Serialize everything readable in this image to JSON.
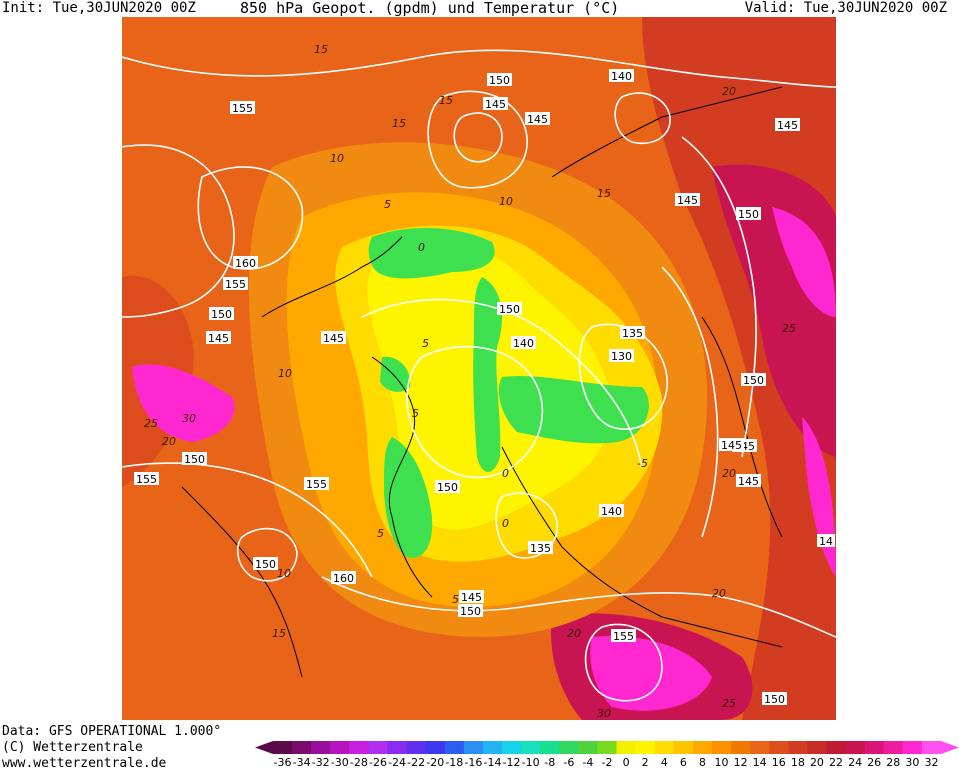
{
  "header": {
    "init": "Init: Tue,30JUN2020 00Z",
    "title": "850 hPa Geopot. (gpdm) und Temperatur (°C)",
    "valid": "Valid: Tue,30JUN2020 00Z"
  },
  "footer": {
    "data_source": "Data: GFS OPERATIONAL 1.000°",
    "copyright": "(C) Wetterzentrale",
    "url": "www.wetterzentrale.de"
  },
  "colorbar": {
    "ticks": [
      "-36",
      "-34",
      "-32",
      "-30",
      "-28",
      "-26",
      "-24",
      "-22",
      "-20",
      "-18",
      "-16",
      "-14",
      "-12",
      "-10",
      "-8",
      "-6",
      "-4",
      "-2",
      "0",
      "2",
      "4",
      "6",
      "8",
      "10",
      "12",
      "14",
      "16",
      "18",
      "20",
      "22",
      "24",
      "26",
      "28",
      "30",
      "32"
    ],
    "colors": [
      "#5a0a4a",
      "#7a0a6e",
      "#98109a",
      "#b515c0",
      "#c81ee0",
      "#b02ef0",
      "#8a2cf0",
      "#6030f0",
      "#3c38f0",
      "#2c5cf0",
      "#2c8cf0",
      "#20b4f0",
      "#18d2e6",
      "#18e0bc",
      "#18e090",
      "#30d860",
      "#52d23a",
      "#78dc1e",
      "#f0f000",
      "#fff400",
      "#ffdc00",
      "#ffc400",
      "#ffa800",
      "#fc9000",
      "#f07800",
      "#e86418",
      "#dc4c1c",
      "#d23c20",
      "#c82c24",
      "#be1c34",
      "#c81450",
      "#dc1478",
      "#f01ca0",
      "#ff28d0",
      "#ff50f0"
    ]
  },
  "map": {
    "geopotential_labels": [
      "155",
      "150",
      "140",
      "145",
      "145",
      "145",
      "150",
      "160",
      "155",
      "150",
      "145",
      "145",
      "150",
      "135",
      "130",
      "140",
      "145",
      "145",
      "145",
      "150",
      "150",
      "155",
      "150",
      "140",
      "135",
      "160",
      "145",
      "150",
      "155",
      "150",
      "145",
      "14",
      "155",
      "150"
    ],
    "temperature_labels": [
      "15",
      "15",
      "10",
      "5",
      "10",
      "15",
      "20",
      "20",
      "30",
      "25",
      "20",
      "10",
      "0",
      "5",
      "0",
      "-5",
      "0",
      "5",
      "5",
      "10",
      "15",
      "20",
      "5",
      "15",
      "25",
      "30",
      "25",
      "20"
    ],
    "colors": {
      "cold_core": "#3ee050",
      "cool": "#f0f000",
      "mild": "#ffc400",
      "warm": "#f08a10",
      "hot": "#dc4c1c",
      "very_hot": "#c81450",
      "extreme": "#ff28d0",
      "contour": "#ffffff",
      "coast": "#000000"
    }
  }
}
